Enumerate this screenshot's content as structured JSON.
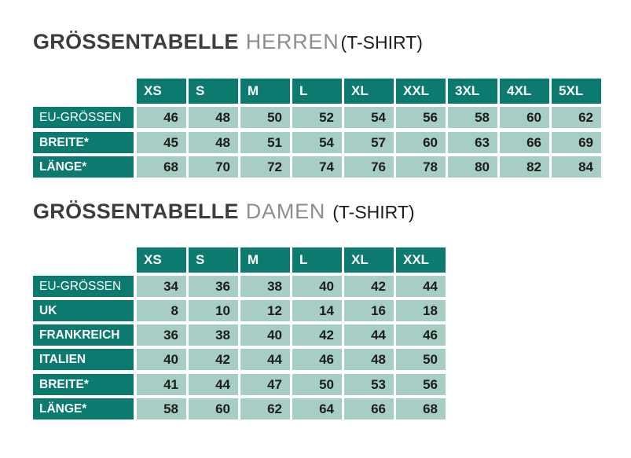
{
  "page": {
    "background": "#ffffff"
  },
  "colors": {
    "table_head": "#0c7a6e",
    "table_cell": "#a6cec5",
    "number_text": "#1d1d1b",
    "title_main": "#3d3d3c",
    "title_sub": "#8d8d8d",
    "title_paren": "#1c1c1b"
  },
  "tables": [
    {
      "id": "herren",
      "title": {
        "main": "GRÖSSENTABELLE",
        "audience": "HERREN",
        "garment": "(T-SHIRT)"
      },
      "columns": [
        "XS",
        "S",
        "M",
        "L",
        "XL",
        "XXL",
        "3XL",
        "4XL",
        "5XL"
      ],
      "row_groups": [
        {
          "rows": [
            {
              "label": "EU-GRÖSSEN",
              "emphasis": false,
              "values": [
                46,
                48,
                50,
                52,
                54,
                56,
                58,
                60,
                62
              ]
            }
          ]
        },
        {
          "rows": [
            {
              "label": "BREITE*",
              "emphasis": true,
              "values": [
                45,
                48,
                51,
                54,
                57,
                60,
                63,
                66,
                69
              ]
            },
            {
              "label": "LÄNGE*",
              "emphasis": true,
              "values": [
                68,
                70,
                72,
                74,
                76,
                78,
                80,
                82,
                84
              ]
            }
          ]
        }
      ]
    },
    {
      "id": "damen",
      "title": {
        "main": "GRÖSSENTABELLE",
        "audience": "DAMEN",
        "garment": "(T-SHIRT)"
      },
      "columns": [
        "XS",
        "S",
        "M",
        "L",
        "XL",
        "XXL"
      ],
      "row_groups": [
        {
          "rows": [
            {
              "label": "EU-GRÖSSEN",
              "emphasis": false,
              "values": [
                34,
                36,
                38,
                40,
                42,
                44
              ]
            },
            {
              "label": "UK",
              "emphasis": true,
              "values": [
                8,
                10,
                12,
                14,
                16,
                18
              ]
            },
            {
              "label": "FRANKREICH",
              "emphasis": true,
              "values": [
                36,
                38,
                40,
                42,
                44,
                46
              ]
            },
            {
              "label": "ITALIEN",
              "emphasis": true,
              "values": [
                40,
                42,
                44,
                46,
                48,
                50
              ]
            }
          ]
        },
        {
          "rows": [
            {
              "label": "BREITE*",
              "emphasis": true,
              "values": [
                41,
                44,
                47,
                50,
                53,
                56
              ]
            },
            {
              "label": "LÄNGE*",
              "emphasis": true,
              "values": [
                58,
                60,
                62,
                64,
                66,
                68
              ]
            }
          ]
        }
      ]
    }
  ]
}
